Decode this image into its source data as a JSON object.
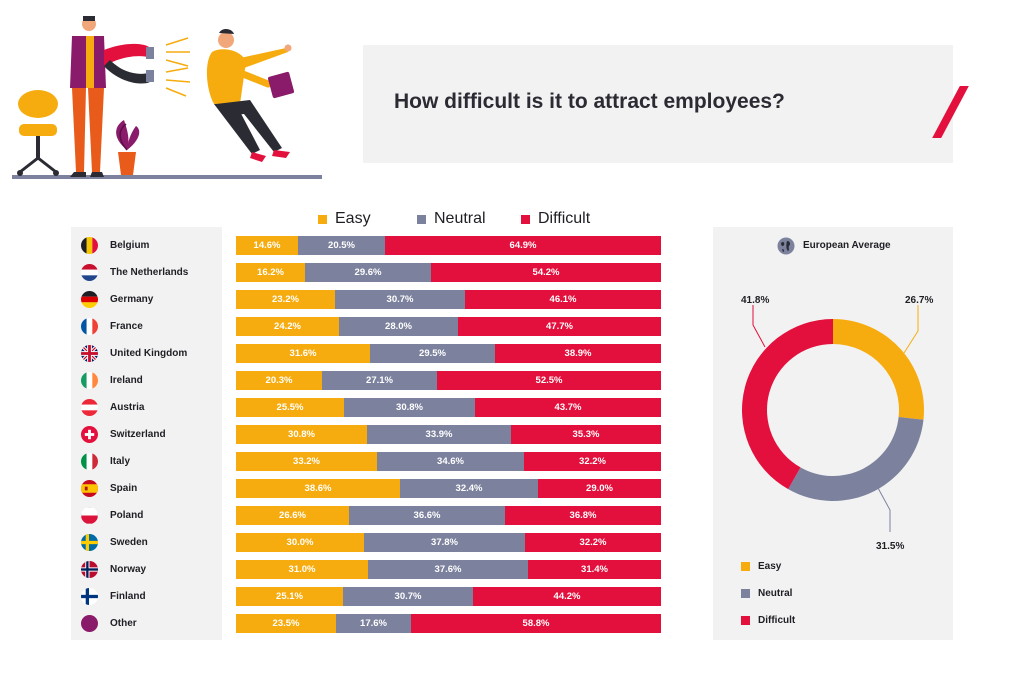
{
  "title": "How difficult is it to attract employees?",
  "colors": {
    "easy": "#f6ac0f",
    "neutral": "#7c829e",
    "difficult": "#e30f3c"
  },
  "legend": [
    {
      "key": "easy",
      "label": "Easy"
    },
    {
      "key": "neutral",
      "label": "Neutral"
    },
    {
      "key": "difficult",
      "label": "Difficult"
    }
  ],
  "chart_data": [
    {
      "type": "bar",
      "orientation": "horizontal-stacked-100",
      "unit": "%",
      "categories": [
        "Belgium",
        "The Netherlands",
        "Germany",
        "France",
        "United Kingdom",
        "Ireland",
        "Austria",
        "Switzerland",
        "Italy",
        "Spain",
        "Poland",
        "Sweden",
        "Norway",
        "Finland",
        "Other"
      ],
      "series": [
        {
          "name": "Easy",
          "values": [
            14.6,
            16.2,
            23.2,
            24.2,
            31.6,
            20.3,
            25.5,
            30.8,
            33.2,
            38.6,
            26.6,
            30.0,
            31.0,
            25.1,
            23.5
          ]
        },
        {
          "name": "Neutral",
          "values": [
            20.5,
            29.6,
            30.7,
            28.0,
            29.5,
            27.1,
            30.8,
            33.9,
            34.6,
            32.4,
            36.6,
            37.8,
            37.6,
            30.7,
            17.6
          ]
        },
        {
          "name": "Difficult",
          "values": [
            64.9,
            54.2,
            46.1,
            47.7,
            38.9,
            52.5,
            43.7,
            35.3,
            32.2,
            29.0,
            36.8,
            32.2,
            31.4,
            44.2,
            58.8
          ]
        }
      ],
      "labels": [
        [
          "14.6%",
          "20.5%",
          "64.9%"
        ],
        [
          "16.2%",
          "29.6%",
          "54.2%"
        ],
        [
          "23.2%",
          "30.7%",
          "46.1%"
        ],
        [
          "24.2%",
          "28.0%",
          "47.7%"
        ],
        [
          "31.6%",
          "29.5%",
          "38.9%"
        ],
        [
          "20.3%",
          "27.1%",
          "52.5%"
        ],
        [
          "25.5%",
          "30.8%",
          "43.7%"
        ],
        [
          "30.8%",
          "33.9%",
          "35.3%"
        ],
        [
          "33.2%",
          "34.6%",
          "32.2%"
        ],
        [
          "38.6%",
          "32.4%",
          "29.0%"
        ],
        [
          "26.6%",
          "36.6%",
          "36.8%"
        ],
        [
          "30.0%",
          "37.8%",
          "32.2%"
        ],
        [
          "31.0%",
          "37.6%",
          "31.4%"
        ],
        [
          "25.1%",
          "30.7%",
          "44.2%"
        ],
        [
          "23.5%",
          "17.6%",
          "58.8%"
        ]
      ],
      "legend": "top"
    },
    {
      "type": "pie",
      "variant": "donut",
      "title": "European Average",
      "categories": [
        "Easy",
        "Neutral",
        "Difficult"
      ],
      "values": [
        26.7,
        31.5,
        41.8
      ],
      "labels": [
        "26.7%",
        "31.5%",
        "41.8%"
      ],
      "legend": "bottom-left"
    }
  ]
}
